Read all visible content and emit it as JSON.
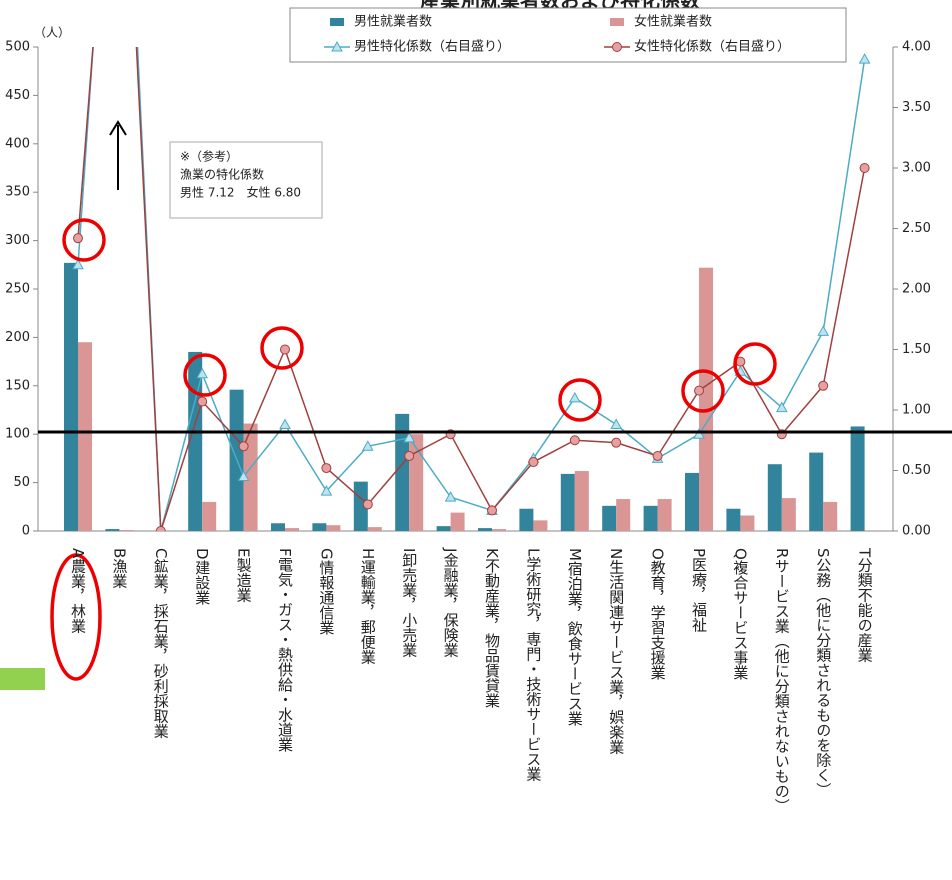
{
  "chart_data": {
    "type": "bar-line",
    "title": "産業別就業者数および特化係数",
    "y_unit": "（人）",
    "categories": [
      "A農業，林業",
      "B漁業",
      "C鉱業，採石業，砂利採取業",
      "D建設業",
      "E製造業",
      "F電気・ガス・熱供給・水道業",
      "G情報通信業",
      "H運輸業，郵便業",
      "I卸売業，小売業",
      "J金融業，保険業",
      "K不動産業，物品賃貸業",
      "L学術研究，専門・技術サービス業",
      "M宿泊業，飲食サービス業",
      "N生活関連サービス業，娯楽業",
      "O教育，学習支援業",
      "P医療，福祉",
      "Q複合サービス事業",
      "Rサービス業（他に分類されないもの）",
      "S公務（他に分類されるものを除く）",
      "T分類不能の産業"
    ],
    "series": [
      {
        "name": "男性就業者数",
        "color": "#31849b",
        "kind": "bar",
        "values": [
          277,
          2,
          0,
          185,
          146,
          8,
          8,
          51,
          121,
          5,
          3,
          23,
          59,
          26,
          26,
          60,
          23,
          69,
          81,
          108
        ]
      },
      {
        "name": "女性就業者数",
        "color": "#d99694",
        "kind": "bar",
        "values": [
          195,
          1,
          0,
          30,
          111,
          3,
          6,
          4,
          100,
          19,
          2,
          11,
          62,
          33,
          33,
          272,
          16,
          34,
          30,
          null
        ]
      },
      {
        "name": "男性特化係数（右目盛り）",
        "color": "#4bacc6",
        "kind": "line",
        "marker": "triangle",
        "axis": "y2",
        "values": [
          2.2,
          7.12,
          0,
          1.3,
          0.45,
          0.88,
          0.33,
          0.7,
          0.77,
          0.28,
          0.17,
          0.6,
          1.1,
          0.88,
          0.6,
          0.8,
          1.32,
          1.02,
          1.65,
          3.9
        ]
      },
      {
        "name": "女性特化係数（右目盛り）",
        "color": "#a0403e",
        "marker_color": "#e6a0a0",
        "kind": "line",
        "marker": "circle",
        "axis": "y2",
        "values": [
          2.42,
          6.8,
          0,
          1.07,
          0.7,
          1.5,
          0.52,
          0.22,
          0.62,
          0.8,
          0.17,
          0.57,
          0.75,
          0.73,
          0.62,
          1.16,
          1.4,
          0.8,
          1.2,
          3.0
        ]
      }
    ],
    "ylim": [
      0,
      500
    ],
    "yticks": [
      0,
      50,
      100,
      150,
      200,
      250,
      300,
      350,
      400,
      450,
      500
    ],
    "y2lim": [
      0,
      4
    ],
    "y2ticks": [
      {
        "value": 0,
        "label": "0.00"
      },
      {
        "value": 0.5,
        "label": "0.50"
      },
      {
        "value": 1,
        "label": "1.00"
      },
      {
        "value": 1.5,
        "label": "1.50"
      },
      {
        "value": 2,
        "label": "2.00"
      },
      {
        "value": 2.5,
        "label": "2.50"
      },
      {
        "value": 3,
        "label": "3.00"
      },
      {
        "value": 3.5,
        "label": "3.50"
      },
      {
        "value": 4,
        "label": "4.00"
      }
    ],
    "note": [
      "※（参考）",
      "漁業の特化係数",
      "男性 7.12　女性 6.80"
    ]
  }
}
